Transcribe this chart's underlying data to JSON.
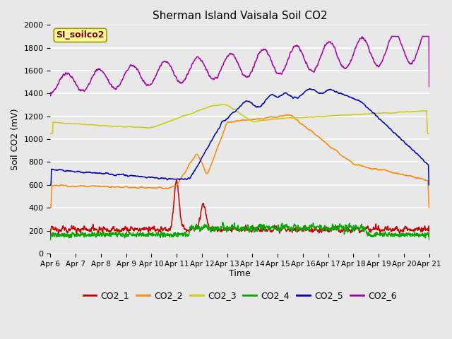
{
  "title": "Sherman Island Vaisala Soil CO2",
  "ylabel": "Soil CO2 (mV)",
  "xlabel": "Time",
  "watermark": "SI_soilco2",
  "ylim": [
    0,
    2000
  ],
  "yticks": [
    0,
    200,
    400,
    600,
    800,
    1000,
    1200,
    1400,
    1600,
    1800,
    2000
  ],
  "xtick_labels": [
    "Apr 6",
    "Apr 7",
    "Apr 8",
    "Apr 9",
    "Apr 10",
    "Apr 11",
    "Apr 12",
    "Apr 13",
    "Apr 14",
    "Apr 15",
    "Apr 16",
    "Apr 17",
    "Apr 18",
    "Apr 19",
    "Apr 20",
    "Apr 21"
  ],
  "series_colors": {
    "CO2_1": "#cc0000",
    "CO2_2": "#ff8800",
    "CO2_3": "#cccc00",
    "CO2_4": "#00aa00",
    "CO2_5": "#0000cc",
    "CO2_6": "#aa00aa"
  },
  "legend_colors": [
    "#cc0000",
    "#ff8800",
    "#cccc00",
    "#00aa00",
    "#0000cc",
    "#aa00aa"
  ],
  "legend_labels": [
    "CO2_1",
    "CO2_2",
    "CO2_3",
    "CO2_4",
    "CO2_5",
    "CO2_6"
  ],
  "background_color": "#e8e8e8",
  "grid_color": "#ffffff",
  "watermark_bg": "#ffff99",
  "watermark_fg": "#880000"
}
